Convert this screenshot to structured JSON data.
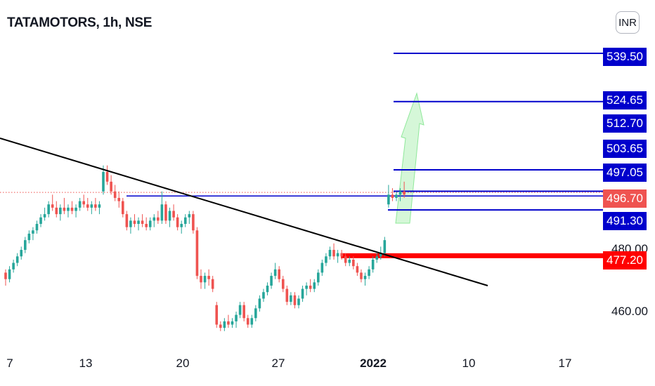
{
  "title": "TATAMOTORS, 1h, NSE",
  "currency": "INR",
  "colors": {
    "up": "#26a69a",
    "down": "#ef5350",
    "level": "#0000cc",
    "support": "#ff0000",
    "last": "#ef5350",
    "trend": "#000000",
    "arrow": "#b2f0b8"
  },
  "chart_data": {
    "type": "candlestick",
    "title": "TATAMOTORS, 1h, NSE",
    "x_ticks": [
      "7",
      "13",
      "20",
      "27",
      "2022",
      "10",
      "17"
    ],
    "y_ticks": [
      "460.00"
    ],
    "ylim": [
      453,
      545
    ],
    "last_price": "496.70",
    "horizontal_levels": [
      "539.50",
      "524.65",
      "512.70",
      "503.65",
      "497.05",
      "491.30",
      "477.20"
    ],
    "partially_hidden_label": "480.00",
    "annotations": [
      "descending black trendline",
      "red support zone at 477.20",
      "green up arrow"
    ],
    "candles": [
      {
        "o": 472,
        "h": 473,
        "l": 468,
        "c": 470
      },
      {
        "o": 470,
        "h": 474,
        "l": 469,
        "c": 473
      },
      {
        "o": 473,
        "h": 476,
        "l": 472,
        "c": 475
      },
      {
        "o": 475,
        "h": 478,
        "l": 474,
        "c": 477
      },
      {
        "o": 477,
        "h": 480,
        "l": 476,
        "c": 479
      },
      {
        "o": 479,
        "h": 483,
        "l": 478,
        "c": 482
      },
      {
        "o": 482,
        "h": 485,
        "l": 481,
        "c": 484
      },
      {
        "o": 484,
        "h": 486,
        "l": 482,
        "c": 485
      },
      {
        "o": 485,
        "h": 488,
        "l": 484,
        "c": 487
      },
      {
        "o": 487,
        "h": 490,
        "l": 486,
        "c": 489
      },
      {
        "o": 489,
        "h": 492,
        "l": 488,
        "c": 490
      },
      {
        "o": 490,
        "h": 494,
        "l": 489,
        "c": 493
      },
      {
        "o": 493,
        "h": 496,
        "l": 491,
        "c": 492
      },
      {
        "o": 492,
        "h": 494,
        "l": 489,
        "c": 490
      },
      {
        "o": 490,
        "h": 493,
        "l": 488,
        "c": 492
      },
      {
        "o": 492,
        "h": 495,
        "l": 490,
        "c": 491
      },
      {
        "o": 491,
        "h": 493,
        "l": 489,
        "c": 492
      },
      {
        "o": 492,
        "h": 494,
        "l": 490,
        "c": 491
      },
      {
        "o": 491,
        "h": 493,
        "l": 489,
        "c": 492
      },
      {
        "o": 492,
        "h": 495,
        "l": 491,
        "c": 494
      },
      {
        "o": 494,
        "h": 496,
        "l": 492,
        "c": 493
      },
      {
        "o": 493,
        "h": 495,
        "l": 491,
        "c": 492
      },
      {
        "o": 492,
        "h": 494,
        "l": 490,
        "c": 493
      },
      {
        "o": 493,
        "h": 495,
        "l": 491,
        "c": 492
      },
      {
        "o": 492,
        "h": 494,
        "l": 490,
        "c": 493
      },
      {
        "o": 497,
        "h": 505,
        "l": 496,
        "c": 503
      },
      {
        "o": 503,
        "h": 505,
        "l": 499,
        "c": 500
      },
      {
        "o": 500,
        "h": 502,
        "l": 496,
        "c": 497
      },
      {
        "o": 497,
        "h": 499,
        "l": 494,
        "c": 495
      },
      {
        "o": 495,
        "h": 497,
        "l": 492,
        "c": 494
      },
      {
        "o": 494,
        "h": 495,
        "l": 489,
        "c": 490
      },
      {
        "o": 490,
        "h": 491,
        "l": 485,
        "c": 486
      },
      {
        "o": 486,
        "h": 489,
        "l": 484,
        "c": 488
      },
      {
        "o": 488,
        "h": 490,
        "l": 486,
        "c": 487
      },
      {
        "o": 487,
        "h": 489,
        "l": 485,
        "c": 488
      },
      {
        "o": 488,
        "h": 490,
        "l": 486,
        "c": 487
      },
      {
        "o": 487,
        "h": 489,
        "l": 485,
        "c": 486
      },
      {
        "o": 486,
        "h": 489,
        "l": 485,
        "c": 488
      },
      {
        "o": 488,
        "h": 490,
        "l": 486,
        "c": 489
      },
      {
        "o": 489,
        "h": 491,
        "l": 487,
        "c": 488
      },
      {
        "o": 488,
        "h": 497,
        "l": 487,
        "c": 493
      },
      {
        "o": 493,
        "h": 494,
        "l": 487,
        "c": 488
      },
      {
        "o": 488,
        "h": 492,
        "l": 486,
        "c": 491
      },
      {
        "o": 491,
        "h": 493,
        "l": 488,
        "c": 489
      },
      {
        "o": 489,
        "h": 490,
        "l": 485,
        "c": 486
      },
      {
        "o": 486,
        "h": 488,
        "l": 484,
        "c": 487
      },
      {
        "o": 487,
        "h": 490,
        "l": 486,
        "c": 489
      },
      {
        "o": 489,
        "h": 491,
        "l": 487,
        "c": 490
      },
      {
        "o": 490,
        "h": 491,
        "l": 484,
        "c": 485
      },
      {
        "o": 485,
        "h": 486,
        "l": 470,
        "c": 471
      },
      {
        "o": 471,
        "h": 473,
        "l": 467,
        "c": 469
      },
      {
        "o": 469,
        "h": 472,
        "l": 467,
        "c": 471
      },
      {
        "o": 471,
        "h": 473,
        "l": 468,
        "c": 470
      },
      {
        "o": 470,
        "h": 471,
        "l": 466,
        "c": 467
      },
      {
        "o": 462,
        "h": 463,
        "l": 455,
        "c": 456
      },
      {
        "o": 456,
        "h": 457,
        "l": 454,
        "c": 455
      },
      {
        "o": 455,
        "h": 458,
        "l": 454,
        "c": 457
      },
      {
        "o": 457,
        "h": 459,
        "l": 455,
        "c": 456
      },
      {
        "o": 456,
        "h": 458,
        "l": 455,
        "c": 457
      },
      {
        "o": 457,
        "h": 460,
        "l": 455,
        "c": 459
      },
      {
        "o": 459,
        "h": 463,
        "l": 458,
        "c": 462
      },
      {
        "o": 462,
        "h": 463,
        "l": 457,
        "c": 458
      },
      {
        "o": 458,
        "h": 459,
        "l": 455,
        "c": 456
      },
      {
        "o": 456,
        "h": 459,
        "l": 455,
        "c": 458
      },
      {
        "o": 458,
        "h": 462,
        "l": 457,
        "c": 461
      },
      {
        "o": 461,
        "h": 465,
        "l": 460,
        "c": 464
      },
      {
        "o": 464,
        "h": 467,
        "l": 463,
        "c": 466
      },
      {
        "o": 466,
        "h": 469,
        "l": 465,
        "c": 468
      },
      {
        "o": 468,
        "h": 472,
        "l": 467,
        "c": 471
      },
      {
        "o": 471,
        "h": 475,
        "l": 470,
        "c": 473
      },
      {
        "o": 473,
        "h": 474,
        "l": 469,
        "c": 470
      },
      {
        "o": 470,
        "h": 471,
        "l": 466,
        "c": 467
      },
      {
        "o": 467,
        "h": 468,
        "l": 462,
        "c": 463
      },
      {
        "o": 463,
        "h": 466,
        "l": 462,
        "c": 465
      },
      {
        "o": 465,
        "h": 466,
        "l": 461,
        "c": 462
      },
      {
        "o": 462,
        "h": 465,
        "l": 461,
        "c": 464
      },
      {
        "o": 464,
        "h": 468,
        "l": 463,
        "c": 467
      },
      {
        "o": 467,
        "h": 469,
        "l": 465,
        "c": 468
      },
      {
        "o": 468,
        "h": 470,
        "l": 466,
        "c": 467
      },
      {
        "o": 467,
        "h": 470,
        "l": 466,
        "c": 469
      },
      {
        "o": 469,
        "h": 473,
        "l": 468,
        "c": 472
      },
      {
        "o": 472,
        "h": 476,
        "l": 471,
        "c": 475
      },
      {
        "o": 475,
        "h": 478,
        "l": 474,
        "c": 477
      },
      {
        "o": 477,
        "h": 480,
        "l": 476,
        "c": 479
      },
      {
        "o": 479,
        "h": 481,
        "l": 476,
        "c": 477
      },
      {
        "o": 477,
        "h": 479,
        "l": 475,
        "c": 478
      },
      {
        "o": 478,
        "h": 479,
        "l": 476,
        "c": 477
      },
      {
        "o": 477,
        "h": 478,
        "l": 474,
        "c": 475
      },
      {
        "o": 475,
        "h": 477,
        "l": 474,
        "c": 476
      },
      {
        "o": 476,
        "h": 477,
        "l": 473,
        "c": 474
      },
      {
        "o": 474,
        "h": 475,
        "l": 471,
        "c": 472
      },
      {
        "o": 472,
        "h": 473,
        "l": 469,
        "c": 470
      },
      {
        "o": 470,
        "h": 472,
        "l": 468,
        "c": 471
      },
      {
        "o": 471,
        "h": 474,
        "l": 470,
        "c": 473
      },
      {
        "o": 473,
        "h": 477,
        "l": 472,
        "c": 476
      },
      {
        "o": 476,
        "h": 478,
        "l": 475,
        "c": 477
      },
      {
        "o": 477,
        "h": 480,
        "l": 476,
        "c": 478
      },
      {
        "o": 478,
        "h": 483,
        "l": 477,
        "c": 482
      },
      {
        "o": 493,
        "h": 499,
        "l": 492,
        "c": 496
      },
      {
        "o": 496,
        "h": 498,
        "l": 494,
        "c": 495
      },
      {
        "o": 495,
        "h": 497,
        "l": 494,
        "c": 496
      },
      {
        "o": 496,
        "h": 498,
        "l": 494,
        "c": 497
      },
      {
        "o": 497,
        "h": 500,
        "l": 495,
        "c": 496
      }
    ]
  }
}
